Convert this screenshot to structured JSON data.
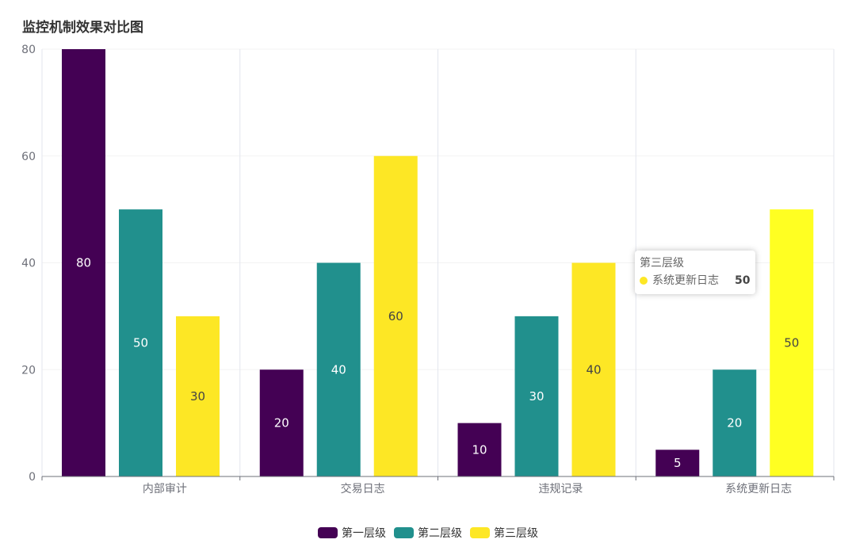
{
  "chart_data": {
    "type": "bar",
    "title": "监控机制效果对比图",
    "categories": [
      "内部审计",
      "交易日志",
      "违规记录",
      "系统更新日志"
    ],
    "series": [
      {
        "name": "第一层级",
        "color": "#440154",
        "values": [
          80,
          20,
          10,
          5
        ]
      },
      {
        "name": "第二层级",
        "color": "#21908d",
        "values": [
          50,
          40,
          30,
          20
        ]
      },
      {
        "name": "第三层级",
        "color": "#fde725",
        "values": [
          30,
          60,
          40,
          50
        ]
      }
    ],
    "highlight": {
      "series": 2,
      "category": 3,
      "color": "#ffff22"
    },
    "ylim": [
      0,
      80
    ],
    "yticks": [
      0,
      20,
      40,
      60,
      80
    ],
    "xlabel": "",
    "ylabel": "",
    "legend_position": "bottom-center",
    "grid": true
  },
  "tooltip": {
    "series_name": "第三层级",
    "category": "系统更新日志",
    "value": "50",
    "color": "#fde725"
  }
}
